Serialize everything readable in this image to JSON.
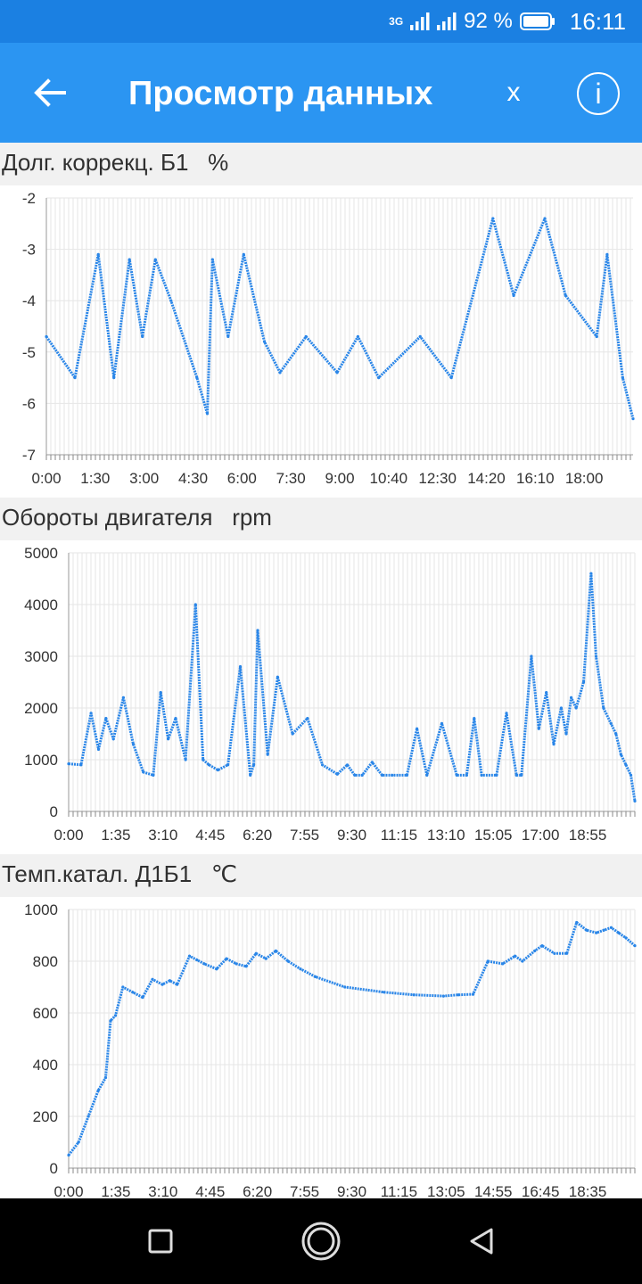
{
  "status_bar": {
    "network": "3G",
    "battery": "92 %",
    "time": "16:11"
  },
  "app_bar": {
    "title": "Просмотр данных",
    "close_label": "x",
    "info_label": "i"
  },
  "colors": {
    "status_bar": "#1b80e2",
    "app_bar": "#2b95f2",
    "series": "#2a86e8",
    "grid": "#e6e6e6"
  },
  "charts": [
    {
      "title": "Долг. коррекц. Б1",
      "unit": "%",
      "chart_data": {
        "type": "line",
        "title": "Долг. коррекц. Б1",
        "unit": "%",
        "ylim": [
          -7,
          -2
        ],
        "y_ticks": [
          -2,
          -3,
          -4,
          -5,
          -6,
          -7
        ],
        "x_tick_labels": [
          "0:00",
          "1:30",
          "3:00",
          "4:30",
          "6:00",
          "7:30",
          "9:00",
          "10:40",
          "12:30",
          "14:20",
          "16:10",
          "18:00"
        ],
        "x_minutes": [
          0,
          55,
          100,
          130,
          160,
          185,
          210,
          240,
          290,
          310,
          320,
          350,
          380,
          420,
          450,
          500,
          560,
          600,
          640,
          720,
          780,
          860,
          900,
          960,
          1000,
          1060,
          1080,
          1110,
          1130
        ],
        "y": [
          -4.7,
          -5.5,
          -3.1,
          -5.5,
          -3.2,
          -4.7,
          -3.2,
          -4.0,
          -5.5,
          -6.2,
          -3.2,
          -4.7,
          -3.1,
          -4.8,
          -5.4,
          -4.7,
          -5.4,
          -4.7,
          -5.5,
          -4.7,
          -5.5,
          -2.4,
          -3.9,
          -2.4,
          -3.9,
          -4.7,
          -3.1,
          -5.5,
          -6.3
        ],
        "grid": true,
        "legend": "none"
      }
    },
    {
      "title": "Обороты двигателя",
      "unit": "rpm",
      "chart_data": {
        "type": "line",
        "title": "Обороты двигателя",
        "unit": "rpm",
        "ylim": [
          0,
          5000
        ],
        "y_ticks": [
          0,
          1000,
          2000,
          3000,
          4000,
          5000
        ],
        "x_tick_labels": [
          "0:00",
          "1:35",
          "3:10",
          "4:45",
          "6:20",
          "7:55",
          "9:30",
          "11:15",
          "13:10",
          "15:05",
          "17:00",
          "18:55"
        ],
        "x_minutes": [
          0,
          25,
          45,
          60,
          75,
          90,
          110,
          130,
          150,
          170,
          185,
          200,
          215,
          235,
          255,
          270,
          282,
          300,
          320,
          345,
          365,
          372,
          380,
          400,
          420,
          450,
          480,
          510,
          540,
          560,
          575,
          590,
          610,
          630,
          650,
          680,
          700,
          720,
          750,
          780,
          800,
          815,
          830,
          860,
          880,
          900,
          910,
          930,
          945,
          960,
          975,
          990,
          1000,
          1010,
          1020,
          1035,
          1050,
          1060,
          1075,
          1090,
          1100,
          1110,
          1120,
          1130,
          1138
        ],
        "y": [
          920,
          900,
          1900,
          1200,
          1800,
          1400,
          2200,
          1300,
          760,
          700,
          2300,
          1400,
          1800,
          1000,
          4000,
          1000,
          900,
          800,
          900,
          2800,
          700,
          900,
          3500,
          1100,
          2600,
          1500,
          1800,
          900,
          720,
          900,
          700,
          700,
          950,
          700,
          700,
          700,
          1600,
          700,
          1700,
          700,
          700,
          1800,
          700,
          700,
          1900,
          700,
          700,
          3000,
          1600,
          2300,
          1300,
          2000,
          1500,
          2200,
          2000,
          2500,
          4600,
          3000,
          2000,
          1700,
          1500,
          1100,
          900,
          700,
          200
        ],
        "grid": true,
        "legend": "none"
      }
    },
    {
      "title": "Темп.катал. Д1Б1",
      "unit": "℃",
      "chart_data": {
        "type": "line",
        "title": "Темп.катал. Д1Б1",
        "unit": "℃",
        "ylim": [
          0,
          1000
        ],
        "y_ticks": [
          0,
          200,
          400,
          600,
          800,
          1000
        ],
        "x_tick_labels": [
          "0:00",
          "1:35",
          "3:10",
          "4:45",
          "6:20",
          "7:55",
          "9:30",
          "11:15",
          "13:05",
          "14:55",
          "16:45",
          "18:35"
        ],
        "x_minutes": [
          0,
          20,
          40,
          60,
          75,
          85,
          95,
          110,
          130,
          150,
          170,
          190,
          205,
          220,
          245,
          260,
          275,
          300,
          320,
          340,
          360,
          380,
          400,
          420,
          445,
          470,
          500,
          560,
          640,
          700,
          760,
          790,
          820,
          850,
          880,
          905,
          920,
          945,
          960,
          985,
          1010,
          1030,
          1050,
          1070,
          1085,
          1100,
          1115,
          1130,
          1148
        ],
        "y": [
          50,
          100,
          200,
          300,
          350,
          570,
          590,
          700,
          680,
          660,
          730,
          710,
          725,
          710,
          820,
          805,
          790,
          770,
          810,
          790,
          780,
          830,
          810,
          840,
          800,
          770,
          740,
          700,
          680,
          670,
          665,
          670,
          672,
          800,
          790,
          820,
          800,
          840,
          860,
          830,
          830,
          950,
          920,
          910,
          920,
          930,
          910,
          890,
          860
        ],
        "grid": true,
        "legend": "none"
      }
    }
  ]
}
